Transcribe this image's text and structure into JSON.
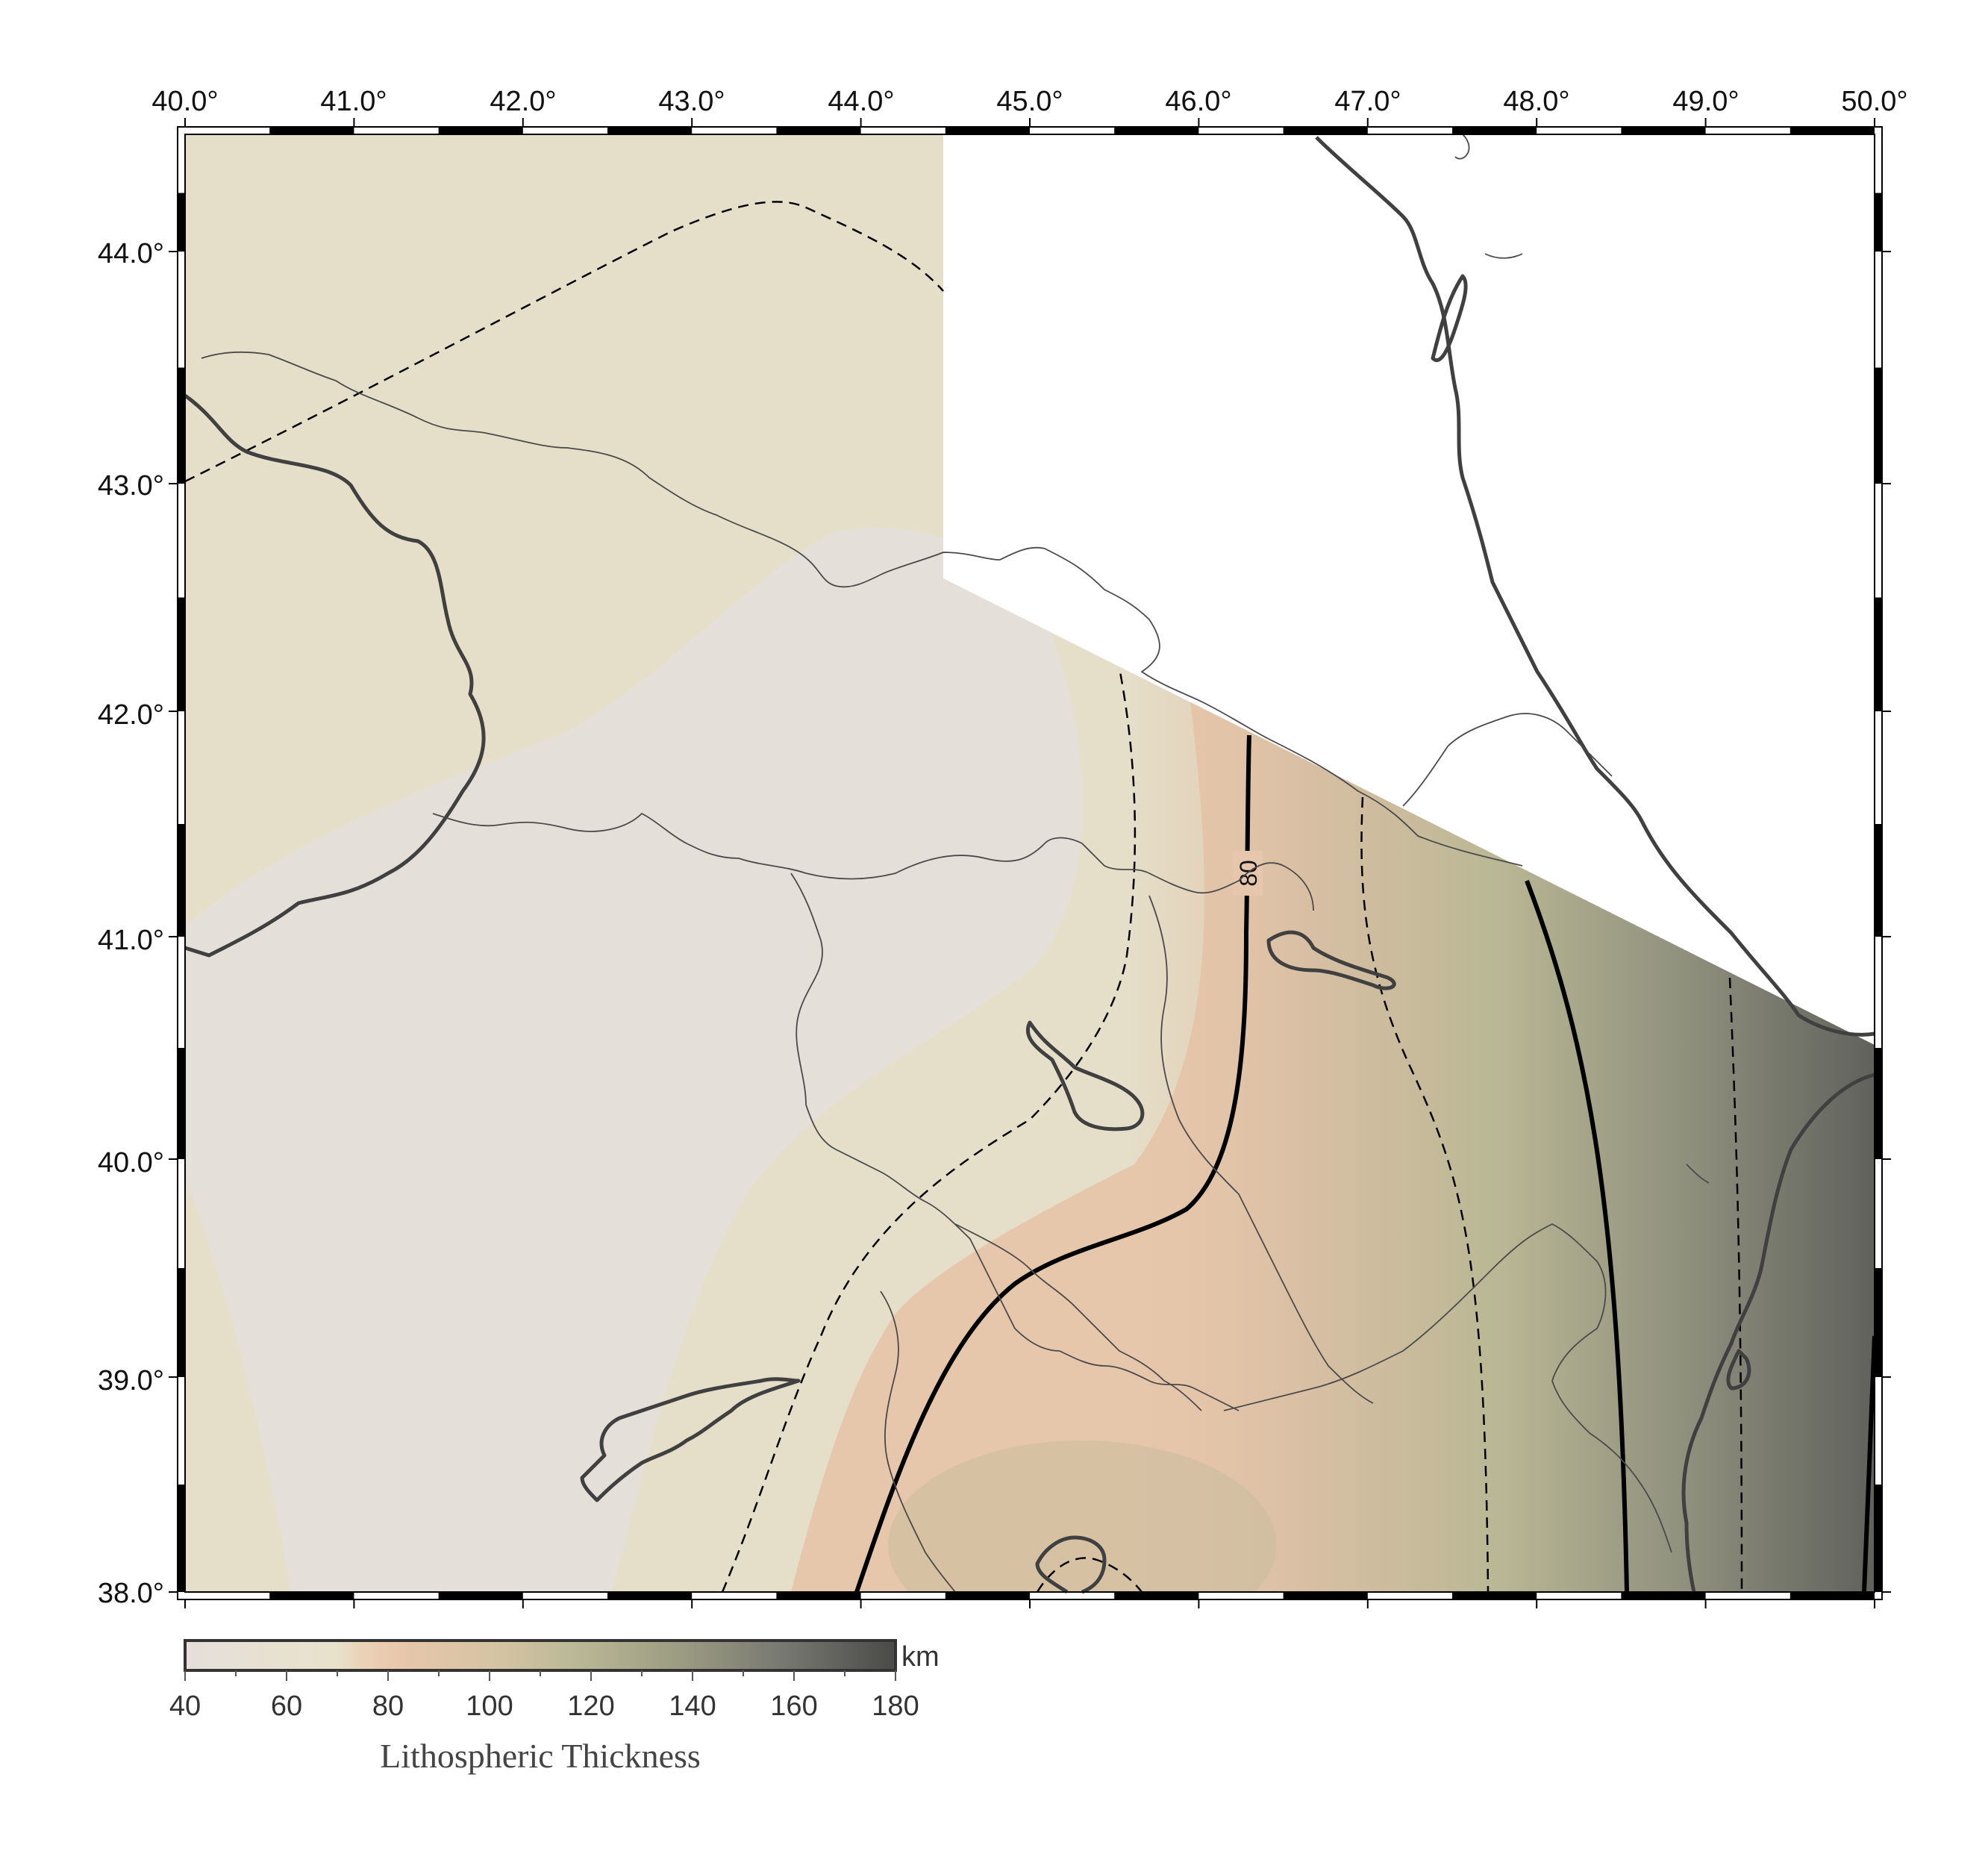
{
  "map": {
    "lon_ticks": [
      "40.0°",
      "41.0°",
      "42.0°",
      "43.0°",
      "44.0°",
      "45.0°",
      "46.0°",
      "47.0°",
      "48.0°",
      "49.0°",
      "50.0°"
    ],
    "lat_ticks": [
      "44.0°",
      "43.0°",
      "42.0°",
      "41.0°",
      "40.0°",
      "39.0°",
      "38.0°"
    ],
    "contour_label": "80"
  },
  "colorbar": {
    "ticks": [
      "40",
      "60",
      "80",
      "100",
      "120",
      "140",
      "160",
      "180"
    ],
    "unit": "km",
    "title": "Lithospheric Thickness",
    "colors": [
      "#e6dfda",
      "#e8e2cb",
      "#e9cbb0",
      "#d8c3a8",
      "#b9b697",
      "#8c8d7b",
      "#6a6b62",
      "#4a4b48"
    ]
  }
}
